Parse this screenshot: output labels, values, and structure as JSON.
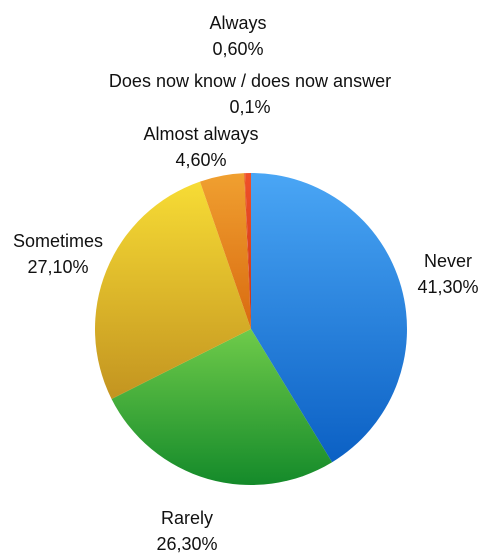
{
  "chart_data": {
    "type": "pie",
    "slices": [
      {
        "label": "Never",
        "value": 41.3,
        "value_label": "41,30%",
        "color": "#1f7fe0"
      },
      {
        "label": "Rarely",
        "value": 26.3,
        "value_label": "26,30%",
        "color": "#3aab3a"
      },
      {
        "label": "Sometimes",
        "value": 27.1,
        "value_label": "27,10%",
        "color": "#e3b51f"
      },
      {
        "label": "Almost always",
        "value": 4.6,
        "value_label": "4,60%",
        "color": "#e8861a"
      },
      {
        "label": "Does now know / does now answer",
        "value": 0.1,
        "value_label": "0,1%",
        "color": "#cc3314"
      },
      {
        "label": "Always",
        "value": 0.6,
        "value_label": "0,60%",
        "color": "#e0421c"
      }
    ]
  }
}
